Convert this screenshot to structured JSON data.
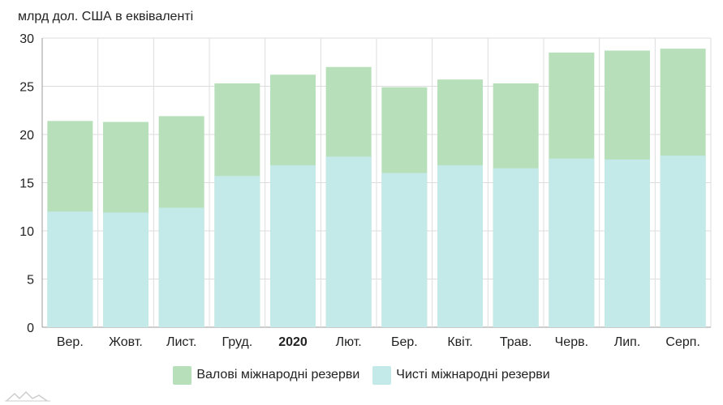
{
  "unit_label": "млрд дол. США в еквіваленті",
  "chart_data": {
    "type": "bar",
    "stacked": false,
    "overlapping": true,
    "categories": [
      "Вер.",
      "Жовт.",
      "Лист.",
      "Груд.",
      "2020",
      "Лют.",
      "Бер.",
      "Квіт.",
      "Трав.",
      "Черв.",
      "Лип.",
      "Серп."
    ],
    "bold_categories": [
      "2020"
    ],
    "series": [
      {
        "name": "Валові міжнародні резерви",
        "color": "#b7dfb9",
        "values": [
          21.4,
          21.3,
          21.9,
          25.3,
          26.2,
          27.0,
          24.9,
          25.7,
          25.3,
          28.5,
          28.7,
          28.9
        ]
      },
      {
        "name": "Чисті міжнародні резерви",
        "color": "#c3e9e9",
        "values": [
          12.0,
          11.9,
          12.4,
          15.7,
          16.8,
          17.7,
          16.0,
          16.8,
          16.5,
          17.5,
          17.4,
          17.8
        ]
      }
    ],
    "ylim": [
      0,
      30
    ],
    "yticks": [
      0,
      5,
      10,
      15,
      20,
      25,
      30
    ],
    "grid": true,
    "legend_position": "bottom-center"
  }
}
